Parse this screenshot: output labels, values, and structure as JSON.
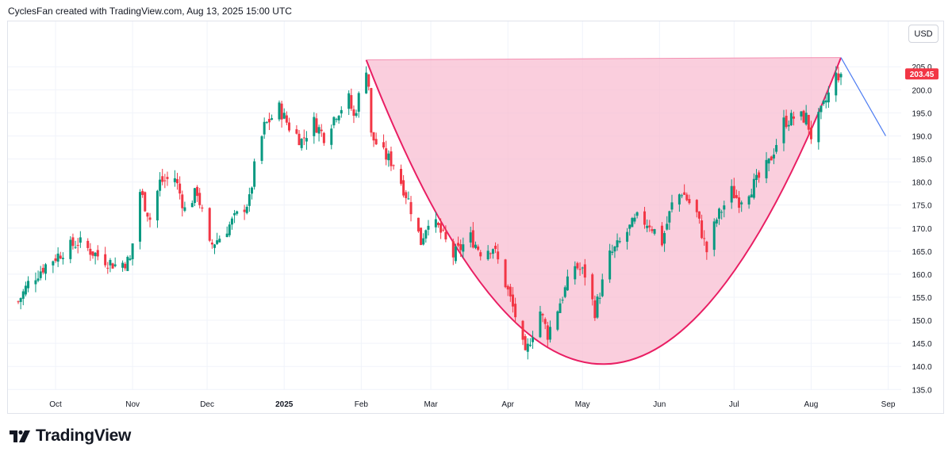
{
  "header": {
    "attribution": "CyclesFan created with TradingView.com, Aug 13, 2025 15:00 UTC"
  },
  "currency_button": "USD",
  "footer": {
    "brand": "TradingView"
  },
  "colors": {
    "up": "#089981",
    "down": "#f23645",
    "cup_fill": "#f8bbd0",
    "cup_line": "#e91e63",
    "projection": "#4d7cf2",
    "grid": "#f0f3fa",
    "price_tag": "#f23645"
  },
  "chart_data": {
    "type": "candlestick",
    "title": "",
    "xlabel": "",
    "ylabel": "",
    "grid": true,
    "x_ticks": [
      "Oct",
      "Nov",
      "Dec",
      "2025",
      "Feb",
      "Mar",
      "Apr",
      "May",
      "Jun",
      "Jul",
      "Aug",
      "Sep"
    ],
    "y_ticks": [
      135.0,
      140.0,
      145.0,
      150.0,
      155.0,
      160.0,
      165.0,
      170.0,
      175.0,
      180.0,
      185.0,
      190.0,
      195.0,
      200.0,
      205.0
    ],
    "ylim": [
      133.5,
      210.5
    ],
    "last_price_label": "203.45",
    "last_price": 203.45,
    "series": [
      {
        "kind": "daily_candles",
        "anchors": [
          [
            "2024-09-16",
            154
          ],
          [
            "2024-09-20",
            158
          ],
          [
            "2024-09-27",
            162
          ],
          [
            "2024-10-04",
            165
          ],
          [
            "2024-10-10",
            167
          ],
          [
            "2024-10-18",
            164
          ],
          [
            "2024-10-25",
            162
          ],
          [
            "2024-10-31",
            163
          ],
          [
            "2024-11-04",
            178
          ],
          [
            "2024-11-08",
            172
          ],
          [
            "2024-11-12",
            180
          ],
          [
            "2024-11-18",
            181
          ],
          [
            "2024-11-22",
            174
          ],
          [
            "2024-11-27",
            178
          ],
          [
            "2024-12-02",
            166
          ],
          [
            "2024-12-06",
            168
          ],
          [
            "2024-12-12",
            172
          ],
          [
            "2024-12-18",
            176
          ],
          [
            "2024-12-20",
            183
          ],
          [
            "2024-12-24",
            192
          ],
          [
            "2024-12-30",
            196
          ],
          [
            "2025-01-03",
            192
          ],
          [
            "2025-01-08",
            189
          ],
          [
            "2025-01-13",
            193
          ],
          [
            "2025-01-17",
            190
          ],
          [
            "2025-01-22",
            195
          ],
          [
            "2025-01-27",
            198
          ],
          [
            "2025-01-29",
            194
          ],
          [
            "2025-02-03",
            205
          ],
          [
            "2025-02-04",
            201
          ],
          [
            "2025-02-05",
            190
          ],
          [
            "2025-02-10",
            186
          ],
          [
            "2025-02-14",
            184
          ],
          [
            "2025-02-20",
            176
          ],
          [
            "2025-02-25",
            167
          ],
          [
            "2025-02-28",
            172
          ],
          [
            "2025-03-04",
            170
          ],
          [
            "2025-03-10",
            164
          ],
          [
            "2025-03-17",
            168
          ],
          [
            "2025-03-21",
            165
          ],
          [
            "2025-03-26",
            166
          ],
          [
            "2025-03-31",
            158
          ],
          [
            "2025-04-04",
            151
          ],
          [
            "2025-04-08",
            142
          ],
          [
            "2025-04-10",
            146
          ],
          [
            "2025-04-14",
            152
          ],
          [
            "2025-04-17",
            147
          ],
          [
            "2025-04-22",
            154
          ],
          [
            "2025-04-28",
            162
          ],
          [
            "2025-05-02",
            160
          ],
          [
            "2025-05-06",
            152
          ],
          [
            "2025-05-12",
            164
          ],
          [
            "2025-05-15",
            166
          ],
          [
            "2025-05-20",
            170
          ],
          [
            "2025-05-23",
            172
          ],
          [
            "2025-05-28",
            171
          ],
          [
            "2025-06-02",
            167
          ],
          [
            "2025-06-06",
            175
          ],
          [
            "2025-06-10",
            178
          ],
          [
            "2025-06-16",
            173
          ],
          [
            "2025-06-20",
            165
          ],
          [
            "2025-06-24",
            172
          ],
          [
            "2025-06-30",
            178
          ],
          [
            "2025-07-03",
            176
          ],
          [
            "2025-07-10",
            180
          ],
          [
            "2025-07-15",
            184
          ],
          [
            "2025-07-21",
            193
          ],
          [
            "2025-07-25",
            194
          ],
          [
            "2025-07-30",
            194
          ],
          [
            "2025-08-01",
            190
          ],
          [
            "2025-08-05",
            195
          ],
          [
            "2025-08-11",
            203
          ],
          [
            "2025-08-13",
            203.45
          ]
        ]
      },
      {
        "kind": "cup_shape",
        "start": [
          "2025-02-03",
          206.5
        ],
        "bottom": [
          "2025-05-10",
          140.5
        ],
        "end": [
          "2025-08-13",
          207
        ],
        "top_edge": [
          [
            "2025-02-03",
            206.5
          ],
          [
            "2025-08-13",
            207
          ]
        ]
      },
      {
        "kind": "projection_line",
        "points": [
          [
            "2025-08-13",
            207
          ],
          [
            "2025-08-31",
            190
          ]
        ]
      }
    ]
  }
}
